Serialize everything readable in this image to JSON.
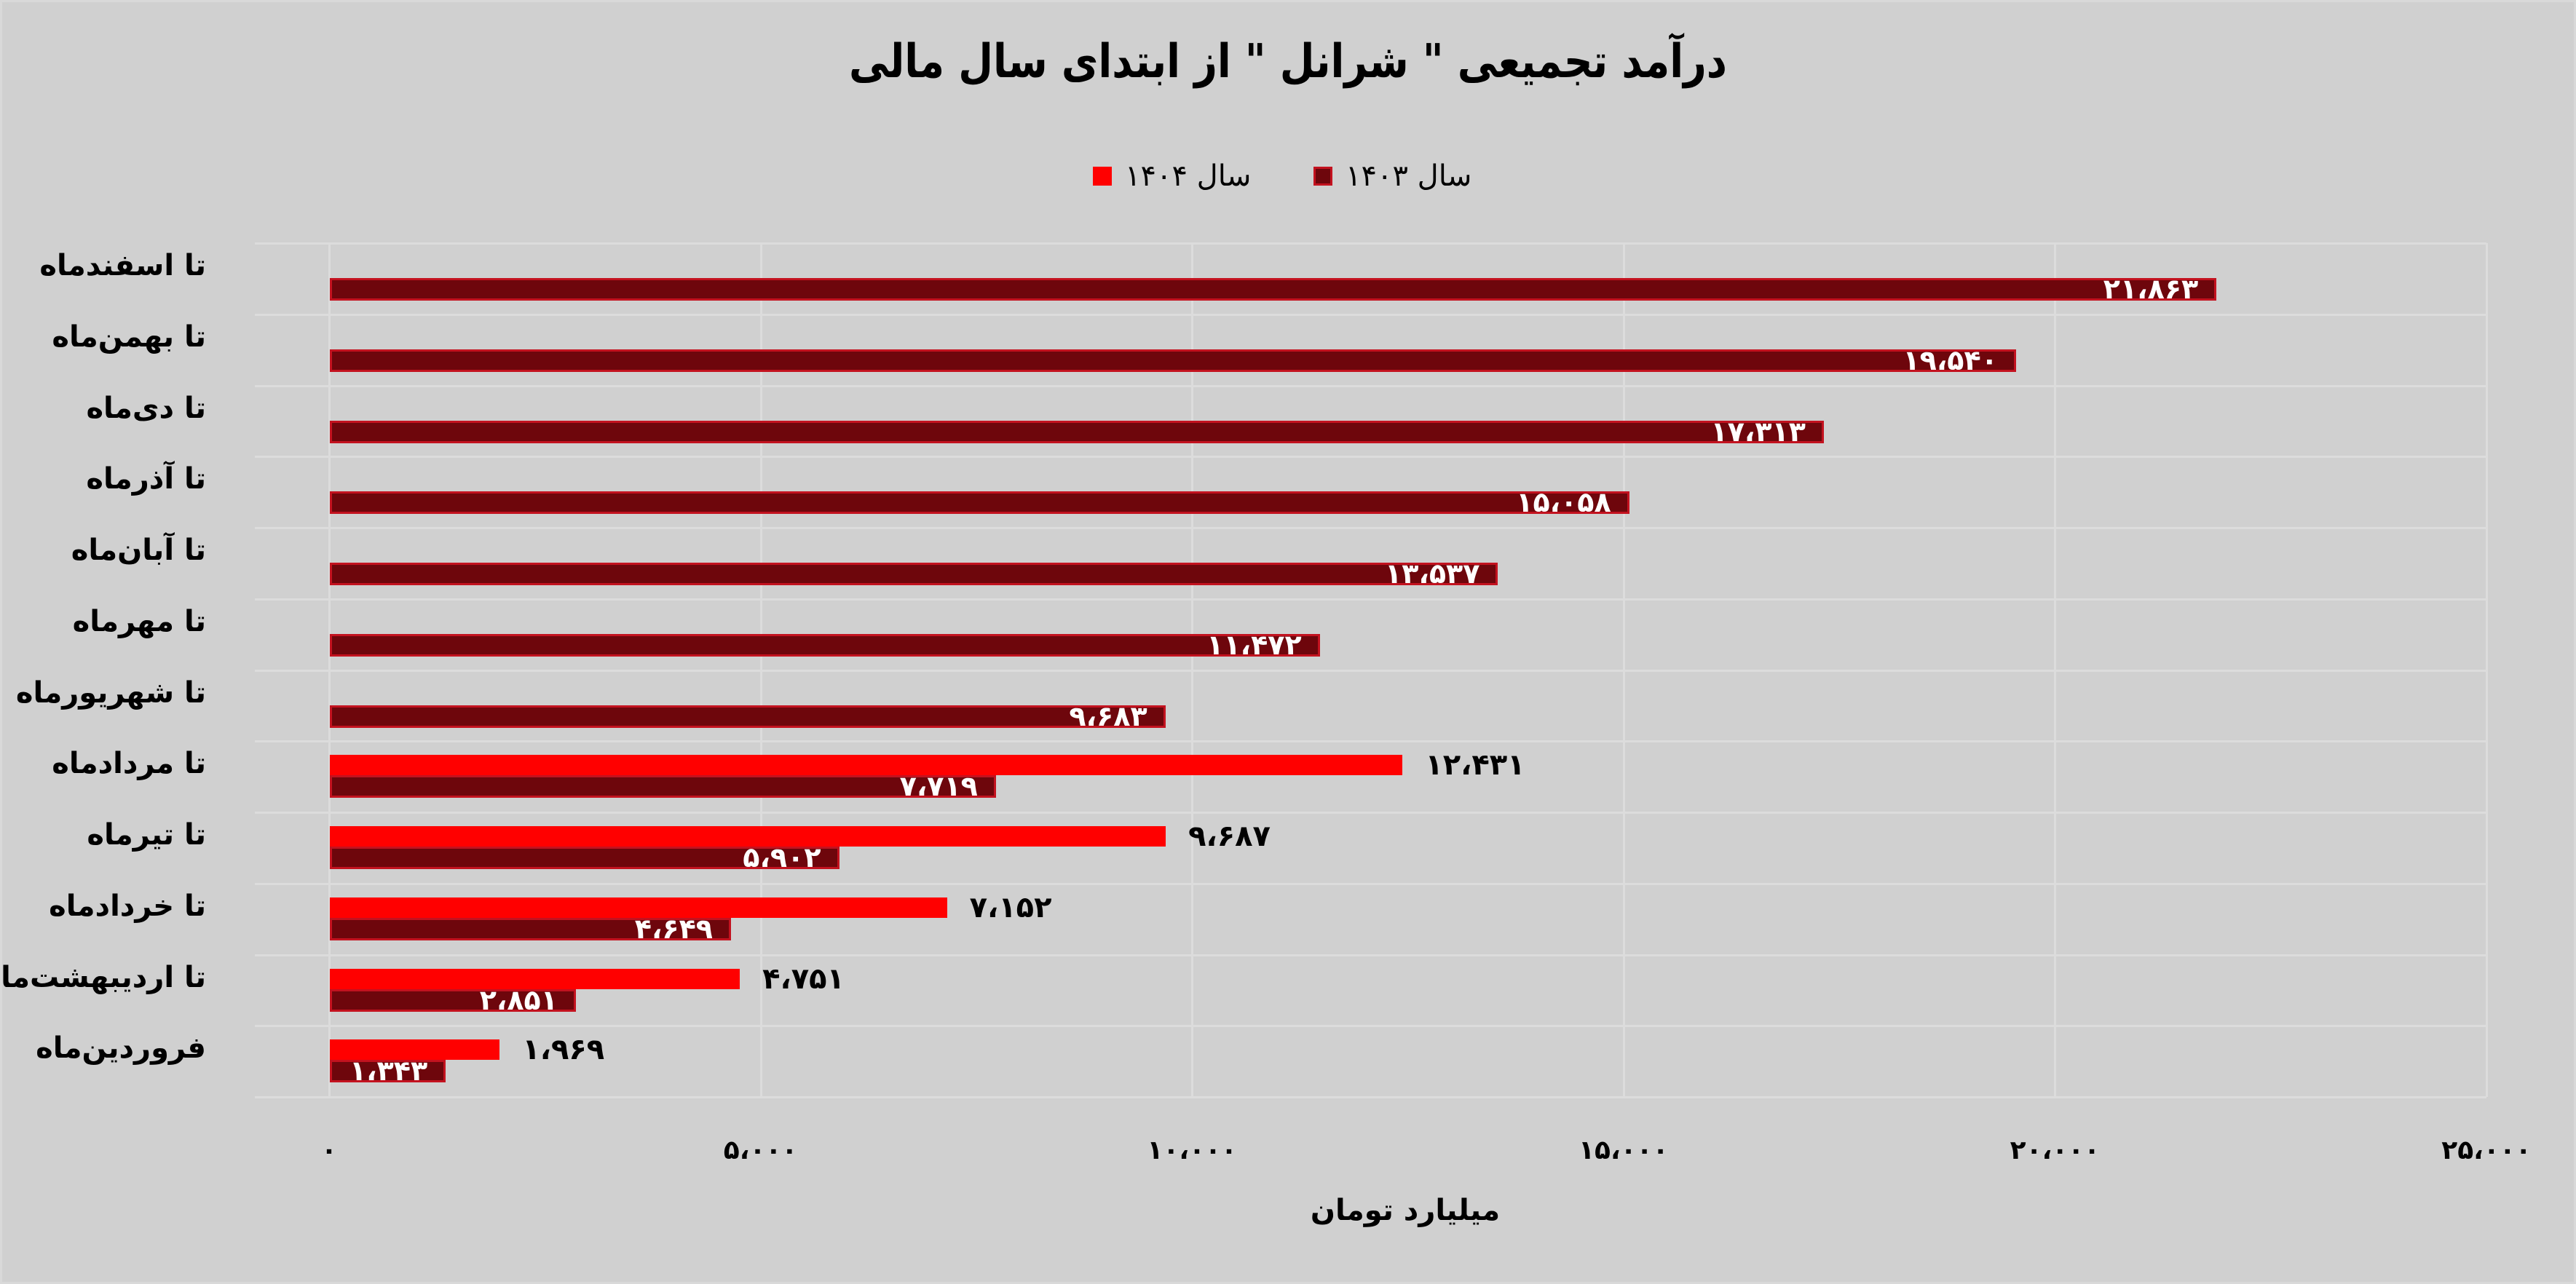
{
  "chart": {
    "title": "درآمد تجمیعی \" شرانل \" از ابتدای سال مالی",
    "xlabel": "میلیارد تومان",
    "legend": [
      {
        "label": "سال ۱۴۰۳",
        "color": "#6e060c",
        "border": "#c3121f"
      },
      {
        "label": "سال ۱۴۰۴",
        "color": "#ff0000",
        "border": "none"
      }
    ],
    "ticks": [
      "۰",
      "۵،۰۰۰",
      "۱۰،۰۰۰",
      "۱۵،۰۰۰",
      "۲۰،۰۰۰",
      "۲۵،۰۰۰"
    ],
    "rows": [
      {
        "label": "تا اسفندماه",
        "v1403": "۲۱،۸۶۳"
      },
      {
        "label": "تا بهمن‌ماه",
        "v1403": "۱۹،۵۴۰"
      },
      {
        "label": "تا دی‌ماه",
        "v1403": "۱۷،۳۱۳"
      },
      {
        "label": "تا آذرماه",
        "v1403": "۱۵،۰۵۸"
      },
      {
        "label": "تا آبان‌ماه",
        "v1403": "۱۳،۵۳۷"
      },
      {
        "label": "تا مهرماه",
        "v1403": "۱۱،۴۷۲"
      },
      {
        "label": "تا شهریورماه",
        "v1403": "۹،۶۸۳"
      },
      {
        "label": "تا مردادماه",
        "v1403": "۷،۷۱۹",
        "v1404": "۱۲،۴۳۱"
      },
      {
        "label": "تا تیرماه",
        "v1403": "۵،۹۰۲",
        "v1404": "۹،۶۸۷"
      },
      {
        "label": "تا خردادماه",
        "v1403": "۴،۶۴۹",
        "v1404": "۷،۱۵۲"
      },
      {
        "label": "تا اردیبهشت‌ماه",
        "v1403": "۲،۸۵۱",
        "v1404": "۴،۷۵۱"
      },
      {
        "label": "فروردین‌ماه",
        "v1403": "۱،۳۴۳",
        "v1404": "۱،۹۶۹"
      }
    ]
  },
  "chart_data": {
    "type": "bar",
    "orientation": "horizontal",
    "title": "درآمد تجمیعی \" شرانل \" از ابتدای سال مالی",
    "xlabel": "میلیارد تومان",
    "ylabel": "",
    "xlim": [
      0,
      25000
    ],
    "xticks": [
      0,
      5000,
      10000,
      15000,
      20000,
      25000
    ],
    "grid": true,
    "legend_position": "top",
    "categories": [
      "تا اسفندماه",
      "تا بهمن‌ماه",
      "تا دی‌ماه",
      "تا آذرماه",
      "تا آبان‌ماه",
      "تا مهرماه",
      "تا شهریورماه",
      "تا مردادماه",
      "تا تیرماه",
      "تا خردادماه",
      "تا اردیبهشت‌ماه",
      "فروردین‌ماه"
    ],
    "series": [
      {
        "name": "سال ۱۴۰۳",
        "color": "#6e060c",
        "values": [
          21863,
          19540,
          17313,
          15058,
          13537,
          11472,
          9683,
          7719,
          5902,
          4649,
          2851,
          1343
        ]
      },
      {
        "name": "سال ۱۴۰۴",
        "color": "#ff0000",
        "values": [
          null,
          null,
          null,
          null,
          null,
          null,
          null,
          12431,
          9687,
          7152,
          4751,
          1969
        ]
      }
    ]
  }
}
